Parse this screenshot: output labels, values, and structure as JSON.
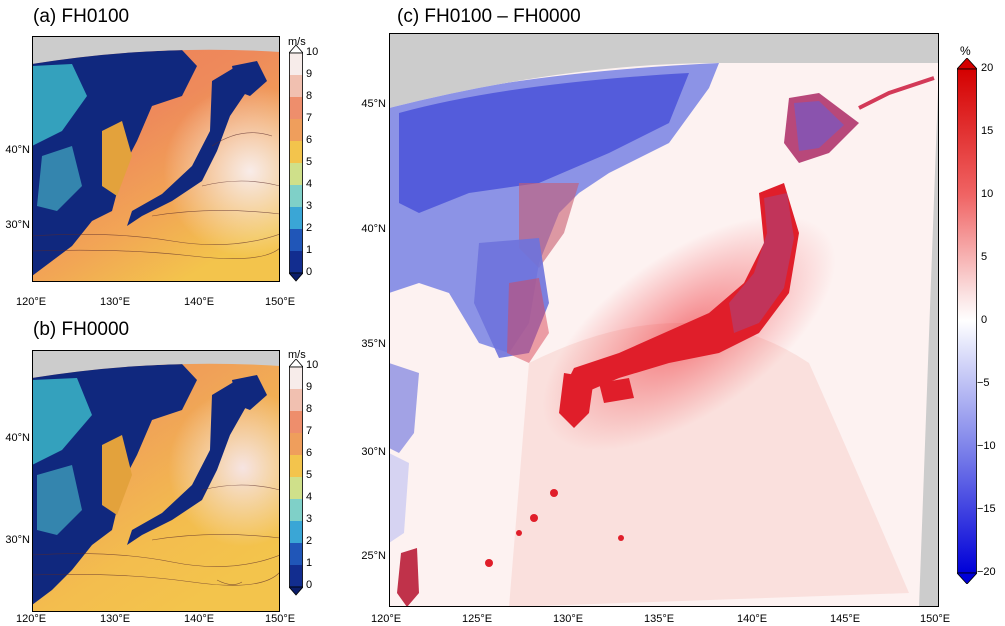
{
  "panel_a": {
    "title": "(a) FH0100",
    "lat_ticks": [
      "40°N",
      "30°N"
    ],
    "lon_ticks": [
      "120°E",
      "130°E",
      "140°E",
      "150°E"
    ],
    "colorbar": {
      "unit": "m/s",
      "labels": [
        "10",
        "9",
        "8",
        "7",
        "6",
        "5",
        "4",
        "3",
        "2",
        "1",
        "0"
      ]
    }
  },
  "panel_b": {
    "title": "(b) FH0000",
    "lat_ticks": [
      "40°N",
      "30°N"
    ],
    "lon_ticks": [
      "120°E",
      "130°E",
      "140°E",
      "150°E"
    ],
    "colorbar": {
      "unit": "m/s",
      "labels": [
        "10",
        "9",
        "8",
        "7",
        "6",
        "5",
        "4",
        "3",
        "2",
        "1",
        "0"
      ]
    }
  },
  "panel_c": {
    "title": "(c) FH0100 – FH0000",
    "lat_ticks": [
      "45°N",
      "40°N",
      "35°N",
      "30°N",
      "25°N"
    ],
    "lon_ticks": [
      "120°E",
      "125°E",
      "130°E",
      "135°E",
      "140°E",
      "145°E",
      "150°E"
    ],
    "colorbar": {
      "unit": "%",
      "labels": [
        "20",
        "15",
        "10",
        "5",
        "0",
        "−5",
        "−10",
        "−15",
        "−20"
      ]
    }
  },
  "colors": {
    "land_gray": "#cccccc",
    "ocean_low": "#f3c44c",
    "ocean_mid": "#ee8a5b",
    "ocean_high": "#f6e4e2",
    "land_speed": "#102a8a",
    "diff_pos": "#e8141b",
    "diff_neg": "#2b33d6",
    "diff_zero": "#ffffff"
  }
}
